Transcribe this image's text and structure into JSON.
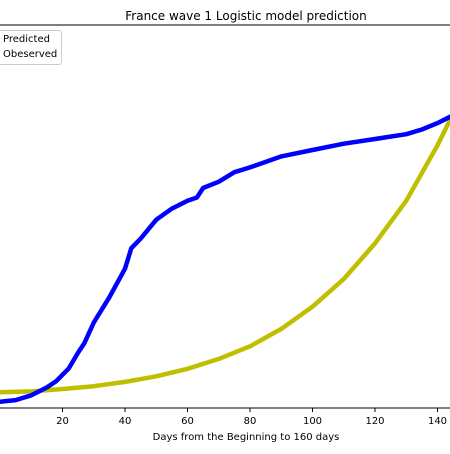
{
  "chart_data": {
    "type": "line",
    "title": "France wave 1 Logistic model prediction",
    "xlabel": "Days from the Beginning to 160 days",
    "ylabel": "",
    "xlim": [
      0,
      144
    ],
    "xticks": [
      20,
      40,
      60,
      80,
      100,
      120,
      140
    ],
    "grid": false,
    "legend_placement": "top-left",
    "series": [
      {
        "name": "Predicted",
        "color": "#bfbf00",
        "x": [
          0,
          10,
          20,
          30,
          40,
          50,
          60,
          70,
          80,
          90,
          100,
          110,
          120,
          130,
          140,
          144
        ],
        "y": [
          0.0,
          0.5,
          2.0,
          3.8,
          6.5,
          10.0,
          14.8,
          21.0,
          29.0,
          40.0,
          54.0,
          71.5,
          94.0,
          121.0,
          156.0,
          172.0
        ]
      },
      {
        "name": "Obeserved",
        "color": "#0000ff",
        "x": [
          0,
          5,
          10,
          15,
          18,
          20,
          22,
          25,
          27,
          30,
          35,
          40,
          42,
          45,
          50,
          55,
          60,
          63,
          65,
          70,
          75,
          80,
          90,
          100,
          110,
          120,
          130,
          135,
          140,
          144
        ],
        "y": [
          -6,
          -5,
          -2,
          3,
          7,
          11,
          15,
          25,
          31,
          44,
          60,
          78,
          91,
          97,
          109,
          116,
          121,
          123,
          129,
          133,
          139,
          142,
          149,
          153,
          157,
          160,
          163,
          166,
          170,
          174
        ]
      }
    ]
  }
}
